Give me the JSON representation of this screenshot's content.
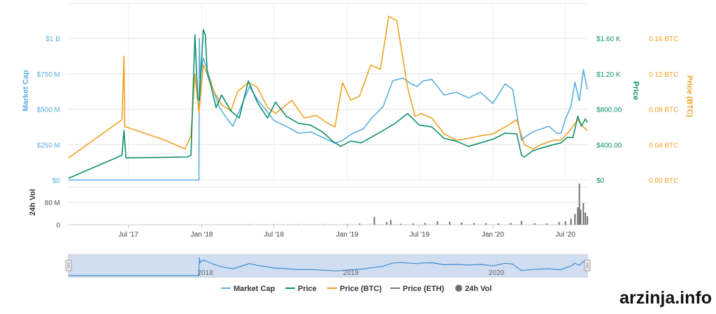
{
  "watermark": "arzinja.info",
  "colors": {
    "market_cap": "#5aaee0",
    "price": "#0e8f6e",
    "price_btc": "#f0a122",
    "price_eth": "#7a7a7a",
    "volume": "#707070",
    "grid": "#e6e6e6",
    "navigator_fill": "#c9d8ee"
  },
  "chart_data": {
    "type": "line",
    "x_labels": [
      "Jul '17",
      "Jan '18",
      "Jul '18",
      "Jan '19",
      "Jul '19",
      "Jan '20",
      "Jul '20"
    ],
    "x_label_dates": [
      "2017-07-01",
      "2018-01-01",
      "2018-07-01",
      "2019-01-01",
      "2019-07-01",
      "2020-01-01",
      "2020-07-01"
    ],
    "x_range": [
      "2017-02-01",
      "2020-08-25"
    ],
    "axes": {
      "market_cap": {
        "title": "Market Cap",
        "ticks": [
          "$0",
          "$250 M",
          "$500 M",
          "$750 M",
          "$1 B"
        ],
        "range": [
          0,
          1000000000
        ]
      },
      "price": {
        "title": "Price",
        "ticks": [
          "$0",
          "$400.00",
          "$800.00",
          "$1.20 K",
          "$1.60 K"
        ],
        "range": [
          0,
          1600
        ]
      },
      "price_btc": {
        "title": "Price (BTC)",
        "ticks": [
          "0.00 BTC",
          "0.04 BTC",
          "0.08 BTC",
          "0.12 BTC",
          "0.16 BTC"
        ],
        "range": [
          0,
          0.16
        ]
      },
      "volume": {
        "title": "24h Vol",
        "ticks": [
          "0",
          "80 M"
        ],
        "range": [
          0,
          100000000
        ]
      }
    },
    "series": [
      {
        "name": "Market Cap",
        "dates": [
          "2017-02-01",
          "2017-12-25",
          "2017-12-26",
          "2017-12-28",
          "2018-01-05",
          "2018-01-10",
          "2018-01-20",
          "2018-02-01",
          "2018-02-15",
          "2018-03-01",
          "2018-03-20",
          "2018-04-10",
          "2018-05-01",
          "2018-05-20",
          "2018-06-10",
          "2018-07-01",
          "2018-08-01",
          "2018-09-01",
          "2018-10-01",
          "2018-11-01",
          "2018-12-01",
          "2018-12-20",
          "2019-01-15",
          "2019-02-10",
          "2019-03-01",
          "2019-04-01",
          "2019-04-25",
          "2019-05-20",
          "2019-06-10",
          "2019-06-25",
          "2019-07-10",
          "2019-08-01",
          "2019-09-01",
          "2019-10-01",
          "2019-11-01",
          "2019-12-01",
          "2020-01-01",
          "2020-02-01",
          "2020-02-20",
          "2020-03-05",
          "2020-03-13",
          "2020-03-20",
          "2020-04-10",
          "2020-05-01",
          "2020-05-20",
          "2020-06-10",
          "2020-06-20",
          "2020-07-01",
          "2020-07-15",
          "2020-07-25",
          "2020-08-05",
          "2020-08-15",
          "2020-08-25"
        ],
        "values": [
          0,
          0,
          1000000000,
          720000000,
          860000000,
          820000000,
          730000000,
          620000000,
          510000000,
          450000000,
          380000000,
          520000000,
          660000000,
          570000000,
          500000000,
          420000000,
          380000000,
          330000000,
          340000000,
          300000000,
          260000000,
          280000000,
          330000000,
          360000000,
          430000000,
          520000000,
          700000000,
          720000000,
          680000000,
          660000000,
          700000000,
          710000000,
          600000000,
          620000000,
          580000000,
          620000000,
          540000000,
          680000000,
          640000000,
          400000000,
          280000000,
          300000000,
          340000000,
          360000000,
          380000000,
          330000000,
          330000000,
          430000000,
          520000000,
          690000000,
          560000000,
          780000000,
          640000000
        ]
      },
      {
        "name": "Price",
        "dates": [
          "2017-02-01",
          "2017-06-15",
          "2017-06-20",
          "2017-06-25",
          "2017-11-25",
          "2017-12-05",
          "2017-12-15",
          "2017-12-22",
          "2017-12-26",
          "2018-01-05",
          "2018-01-10",
          "2018-01-15",
          "2018-01-25",
          "2018-02-06",
          "2018-02-20",
          "2018-03-15",
          "2018-04-05",
          "2018-04-28",
          "2018-05-20",
          "2018-06-15",
          "2018-07-05",
          "2018-08-01",
          "2018-09-01",
          "2018-10-01",
          "2018-11-01",
          "2018-11-25",
          "2018-12-15",
          "2019-01-10",
          "2019-02-05",
          "2019-03-01",
          "2019-04-01",
          "2019-05-01",
          "2019-06-01",
          "2019-07-01",
          "2019-08-01",
          "2019-09-01",
          "2019-10-01",
          "2019-11-01",
          "2019-12-01",
          "2020-01-01",
          "2020-02-01",
          "2020-03-01",
          "2020-03-13",
          "2020-03-20",
          "2020-04-10",
          "2020-05-01",
          "2020-06-01",
          "2020-06-20",
          "2020-07-05",
          "2020-07-20",
          "2020-08-01",
          "2020-08-10",
          "2020-08-20",
          "2020-08-25"
        ],
        "values": [
          20,
          280,
          560,
          250,
          260,
          280,
          1640,
          920,
          900,
          1700,
          1640,
          1200,
          1050,
          820,
          960,
          780,
          700,
          1120,
          880,
          700,
          880,
          720,
          640,
          620,
          540,
          440,
          380,
          440,
          420,
          480,
          560,
          640,
          750,
          620,
          600,
          470,
          440,
          380,
          420,
          460,
          530,
          520,
          280,
          260,
          330,
          360,
          400,
          420,
          480,
          480,
          720,
          610,
          690,
          650
        ]
      },
      {
        "name": "Price (BTC)",
        "dates": [
          "2017-02-01",
          "2017-06-15",
          "2017-06-20",
          "2017-06-22",
          "2017-06-25",
          "2017-10-01",
          "2017-11-20",
          "2017-12-05",
          "2017-12-15",
          "2017-12-25",
          "2018-01-05",
          "2018-01-15",
          "2018-02-01",
          "2018-02-20",
          "2018-03-15",
          "2018-04-01",
          "2018-04-28",
          "2018-05-20",
          "2018-06-15",
          "2018-07-05",
          "2018-08-15",
          "2018-09-15",
          "2018-10-15",
          "2018-11-10",
          "2018-12-01",
          "2018-12-20",
          "2019-01-10",
          "2019-02-01",
          "2019-03-01",
          "2019-03-25",
          "2019-04-15",
          "2019-05-05",
          "2019-06-01",
          "2019-06-20",
          "2019-07-05",
          "2019-08-01",
          "2019-09-01",
          "2019-10-01",
          "2019-11-01",
          "2019-12-01",
          "2020-01-01",
          "2020-02-01",
          "2020-03-01",
          "2020-03-20",
          "2020-04-10",
          "2020-05-01",
          "2020-06-01",
          "2020-06-20",
          "2020-07-10",
          "2020-08-01",
          "2020-08-15",
          "2020-08-25"
        ],
        "values": [
          0.025,
          0.068,
          0.14,
          0.06,
          0.06,
          0.045,
          0.035,
          0.05,
          0.12,
          0.076,
          0.13,
          0.12,
          0.1,
          0.085,
          0.078,
          0.1,
          0.11,
          0.105,
          0.082,
          0.075,
          0.09,
          0.07,
          0.073,
          0.065,
          0.06,
          0.11,
          0.09,
          0.095,
          0.13,
          0.125,
          0.185,
          0.18,
          0.105,
          0.072,
          0.075,
          0.07,
          0.052,
          0.045,
          0.047,
          0.05,
          0.052,
          0.06,
          0.068,
          0.04,
          0.035,
          0.04,
          0.045,
          0.045,
          0.055,
          0.068,
          0.06,
          0.056
        ]
      }
    ],
    "volume": {
      "dates": [
        "2018-05-01",
        "2018-07-01",
        "2018-09-01",
        "2018-11-01",
        "2019-01-01",
        "2019-02-01",
        "2019-03-10",
        "2019-04-10",
        "2019-04-20",
        "2019-05-15",
        "2019-06-15",
        "2019-07-15",
        "2019-08-15",
        "2019-09-15",
        "2019-10-15",
        "2019-11-15",
        "2019-12-15",
        "2020-01-15",
        "2020-02-15",
        "2020-03-13",
        "2020-04-15",
        "2020-05-15",
        "2020-06-15",
        "2020-07-01",
        "2020-07-15",
        "2020-07-25",
        "2020-08-01",
        "2020-08-05",
        "2020-08-08",
        "2020-08-15",
        "2020-08-20",
        "2020-08-25"
      ],
      "values": [
        500000,
        700000,
        600000,
        800000,
        1500000,
        2500000,
        18000000,
        6000000,
        11000000,
        2000000,
        3000000,
        4000000,
        8000000,
        7000000,
        5000000,
        4000000,
        3500000,
        3000000,
        4000000,
        9000000,
        3500000,
        3000000,
        6000000,
        8000000,
        14000000,
        25000000,
        40000000,
        95000000,
        35000000,
        50000000,
        28000000,
        20000000
      ]
    },
    "navigator": {
      "labels": [
        "2018",
        "2019",
        "2020"
      ],
      "label_dates": [
        "2018-01-01",
        "2019-01-01",
        "2020-01-01"
      ]
    },
    "legend": [
      {
        "label": "Market Cap",
        "symbol": "line"
      },
      {
        "label": "Price",
        "symbol": "line"
      },
      {
        "label": "Price (BTC)",
        "symbol": "line"
      },
      {
        "label": "Price (ETH)",
        "symbol": "line"
      },
      {
        "label": "24h Vol",
        "symbol": "dot"
      }
    ]
  }
}
